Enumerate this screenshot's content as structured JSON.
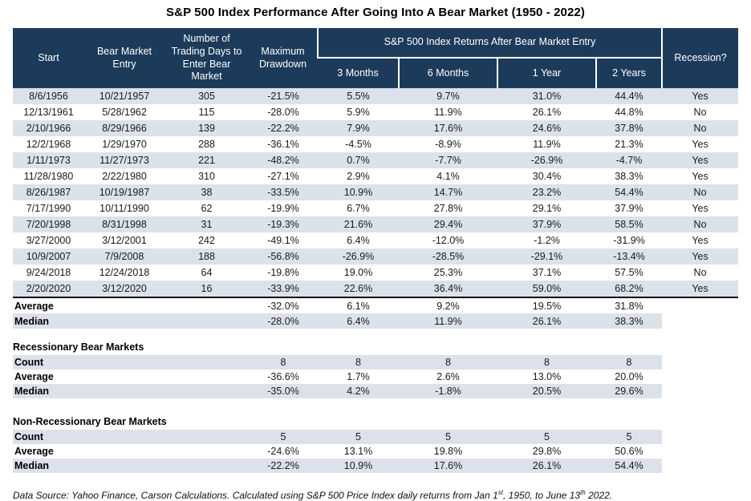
{
  "colors": {
    "header_bg": "#1C3B5A",
    "header_text": "#FFFFFF",
    "row_shade": "#DCE1EB",
    "divider": "#000000",
    "page_bg": "#FFFFFF"
  },
  "chart_data": {
    "type": "table",
    "title": "S&P 500 Index Performance After Going Into A Bear Market (1950 - 2022)",
    "header": {
      "static_columns": [
        "Start",
        "Bear Market Entry",
        "Number of Trading Days to Enter Bear Market",
        "Maximum Drawdown"
      ],
      "group_header": "S&P 500 Index Returns After Bear Market Entry",
      "sub_columns": [
        "3 Months",
        "6 Months",
        "1 Year",
        "2 Years"
      ],
      "last_column": "Recession?"
    },
    "rows": [
      [
        "8/6/1956",
        "10/21/1957",
        "305",
        "-21.5%",
        "5.5%",
        "9.7%",
        "31.0%",
        "44.4%",
        "Yes"
      ],
      [
        "12/13/1961",
        "5/28/1962",
        "115",
        "-28.0%",
        "5.9%",
        "11.9%",
        "26.1%",
        "44.8%",
        "No"
      ],
      [
        "2/10/1966",
        "8/29/1966",
        "139",
        "-22.2%",
        "7.9%",
        "17.6%",
        "24.6%",
        "37.8%",
        "No"
      ],
      [
        "12/2/1968",
        "1/29/1970",
        "288",
        "-36.1%",
        "-4.5%",
        "-8.9%",
        "11.9%",
        "21.3%",
        "Yes"
      ],
      [
        "1/11/1973",
        "11/27/1973",
        "221",
        "-48.2%",
        "0.7%",
        "-7.7%",
        "-26.9%",
        "-4.7%",
        "Yes"
      ],
      [
        "11/28/1980",
        "2/22/1980",
        "310",
        "-27.1%",
        "2.9%",
        "4.1%",
        "30.4%",
        "38.3%",
        "Yes"
      ],
      [
        "8/26/1987",
        "10/19/1987",
        "38",
        "-33.5%",
        "10.9%",
        "14.7%",
        "23.2%",
        "54.4%",
        "No"
      ],
      [
        "7/17/1990",
        "10/11/1990",
        "62",
        "-19.9%",
        "6.7%",
        "27.8%",
        "29.1%",
        "37.9%",
        "Yes"
      ],
      [
        "7/20/1998",
        "8/31/1998",
        "31",
        "-19.3%",
        "21.6%",
        "29.4%",
        "37.9%",
        "58.5%",
        "No"
      ],
      [
        "3/27/2000",
        "3/12/2001",
        "242",
        "-49.1%",
        "6.4%",
        "-12.0%",
        "-1.2%",
        "-31.9%",
        "Yes"
      ],
      [
        "10/9/2007",
        "7/9/2008",
        "188",
        "-56.8%",
        "-26.9%",
        "-28.5%",
        "-29.1%",
        "-13.4%",
        "Yes"
      ],
      [
        "9/24/2018",
        "12/24/2018",
        "64",
        "-19.8%",
        "19.0%",
        "25.3%",
        "37.1%",
        "57.5%",
        "No"
      ],
      [
        "2/20/2020",
        "3/12/2020",
        "16",
        "-33.9%",
        "22.6%",
        "36.4%",
        "59.0%",
        "68.2%",
        "Yes"
      ]
    ],
    "overall_summary": [
      {
        "label": "Average",
        "values": [
          "-32.0%",
          "6.1%",
          "9.2%",
          "19.5%",
          "31.8%"
        ],
        "shaded": false
      },
      {
        "label": "Median",
        "values": [
          "-28.0%",
          "6.4%",
          "11.9%",
          "26.1%",
          "38.3%"
        ],
        "shaded": true
      }
    ],
    "sections": [
      {
        "heading": "Recessionary Bear Markets",
        "rows": [
          {
            "label": "Count",
            "values": [
              "8",
              "8",
              "8",
              "8",
              "8"
            ],
            "shaded": true
          },
          {
            "label": "Average",
            "values": [
              "-36.6%",
              "1.7%",
              "2.6%",
              "13.0%",
              "20.0%"
            ],
            "shaded": false
          },
          {
            "label": "Median",
            "values": [
              "-35.0%",
              "4.2%",
              "-1.8%",
              "20.5%",
              "29.6%"
            ],
            "shaded": true
          }
        ]
      },
      {
        "heading": "Non-Recessionary Bear Markets",
        "rows": [
          {
            "label": "Count",
            "values": [
              "5",
              "5",
              "5",
              "5",
              "5"
            ],
            "shaded": true
          },
          {
            "label": "Average",
            "values": [
              "-24.6%",
              "13.1%",
              "19.8%",
              "29.8%",
              "50.6%"
            ],
            "shaded": false
          },
          {
            "label": "Median",
            "values": [
              "-22.2%",
              "10.9%",
              "17.6%",
              "26.1%",
              "54.4%"
            ],
            "shaded": true
          }
        ]
      }
    ],
    "source_note": {
      "part1": "Data Source: Yahoo Finance, Carson Calculations. Calculated using S&P 500 Price Index daily returns from Jan 1",
      "sup1": "st",
      "part2": ", 1950, to June 13",
      "sup2": "th",
      "part3": " 2022."
    }
  }
}
